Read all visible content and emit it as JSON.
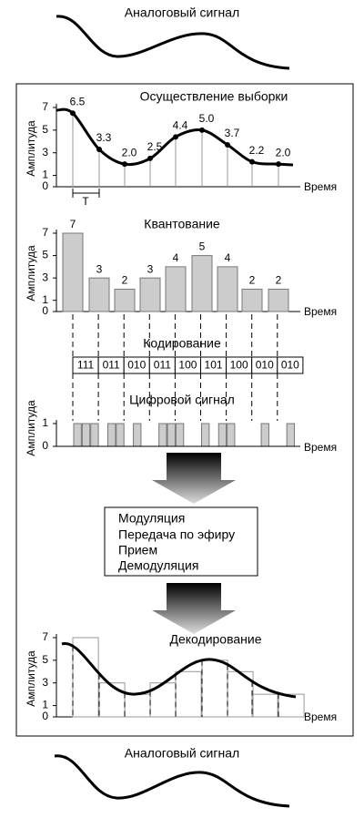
{
  "top_label": "Аналоговый сигнал",
  "sampling": {
    "title": "Осуществление выборки",
    "y_label": "Амплитуда",
    "x_label": "Время",
    "period_label": "T",
    "values": [
      6.5,
      3.3,
      2.0,
      2.5,
      4.4,
      5.0,
      3.7,
      2.2,
      2.0
    ],
    "value_labels": [
      "6.5",
      "3.3",
      "2.0",
      "2.5",
      "4.4",
      "5.0",
      "3.7",
      "2.2",
      "2.0"
    ],
    "ylim": [
      0,
      7
    ],
    "yticks": [
      7,
      5,
      3,
      1,
      0
    ]
  },
  "quantization": {
    "title": "Квантование",
    "y_label": "Амплитуда",
    "x_label": "Время",
    "values": [
      7,
      3,
      2,
      3,
      4,
      5,
      4,
      2,
      2
    ],
    "ylim": [
      0,
      7
    ],
    "yticks": [
      7,
      5,
      3,
      1,
      0
    ]
  },
  "coding": {
    "title": "Кодирование",
    "codes": [
      "111",
      "011",
      "010",
      "011",
      "100",
      "101",
      "100",
      "010",
      "010"
    ]
  },
  "digital": {
    "title": "Цифровой сигнал",
    "y_label": "Амплитуда",
    "x_label": "Время",
    "ylim": [
      0,
      1
    ],
    "yticks": [
      1,
      0
    ]
  },
  "transmission": {
    "steps": [
      "Модуляция",
      "Передача по эфиру",
      "Прием",
      "Демодуляция"
    ]
  },
  "decoding": {
    "title": "Декодирование",
    "y_label": "Амплитуда",
    "x_label": "Время",
    "ylim": [
      0,
      7
    ],
    "yticks": [
      7,
      5,
      3,
      1,
      0
    ]
  },
  "bottom_label": "Аналоговый сигнал"
}
